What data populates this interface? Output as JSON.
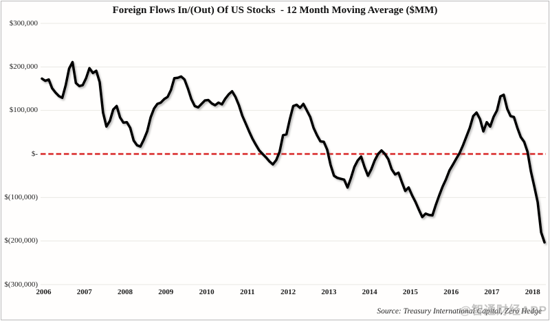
{
  "title": "Foreign Flows In/(Out) Of US Stocks  - 12 Month Moving Average ($MM)",
  "source_note": "Source: Treasury International Capital, Zero Hedge",
  "watermark": "@智通财经APP",
  "chart_data": {
    "type": "line",
    "title": "Foreign Flows In/(Out) Of US Stocks - 12 Month Moving Average ($MM)",
    "series_name": "Foreign flows into US stocks, 12-month moving average ($MM)",
    "frequency": "monthly",
    "x_start": "2006-01",
    "x_end": "2018-05",
    "x_tick_labels": [
      "2006",
      "2007",
      "2008",
      "2009",
      "2010",
      "2011",
      "2012",
      "2013",
      "2014",
      "2015",
      "2016",
      "2017",
      "2018"
    ],
    "y_ticks": [
      {
        "label": "$300,000",
        "value": 300000
      },
      {
        "label": "$200,000",
        "value": 200000
      },
      {
        "label": "$100,000",
        "value": 100000
      },
      {
        "label": "$-",
        "value": 0
      },
      {
        "label": "$(100,000)",
        "value": -100000
      },
      {
        "label": "$(200,000)",
        "value": -200000
      },
      {
        "label": "$(300,000)",
        "value": -300000
      }
    ],
    "ylim": [
      -300000,
      300000
    ],
    "grid": "horizontal",
    "legend": "none",
    "line_color": "#050505",
    "gridline_color": "#eae8e2",
    "zero_line": {
      "style": "dashed",
      "color": "#d82222"
    },
    "values": [
      173000,
      168000,
      171000,
      151000,
      141000,
      133000,
      129000,
      158000,
      196000,
      211000,
      163000,
      156000,
      158000,
      174000,
      197000,
      186000,
      191000,
      165000,
      95000,
      63000,
      76000,
      102000,
      110000,
      84000,
      72000,
      73000,
      60000,
      31000,
      20000,
      17000,
      33000,
      52000,
      84000,
      104000,
      115000,
      118000,
      126000,
      131000,
      147000,
      174000,
      175000,
      178000,
      171000,
      150000,
      126000,
      110000,
      107000,
      115000,
      123000,
      124000,
      116000,
      112000,
      118000,
      114000,
      127000,
      137000,
      144000,
      131000,
      112000,
      88000,
      70000,
      52000,
      35000,
      21000,
      8000,
      0,
      -8000,
      -17000,
      -24000,
      -14000,
      5000,
      43000,
      45000,
      80000,
      110000,
      113000,
      106000,
      115000,
      100000,
      85000,
      60000,
      43000,
      29000,
      28000,
      10000,
      -25000,
      -50000,
      -55000,
      -57000,
      -59000,
      -77000,
      -55000,
      -30000,
      -15000,
      -6000,
      -30000,
      -50000,
      -35000,
      -15000,
      0,
      8000,
      0,
      -12000,
      -35000,
      -47000,
      -43000,
      -65000,
      -85000,
      -77000,
      -95000,
      -110000,
      -128000,
      -145000,
      -137000,
      -140000,
      -141000,
      -117000,
      -95000,
      -75000,
      -58000,
      -38000,
      -25000,
      -11000,
      2000,
      20000,
      40000,
      60000,
      87000,
      95000,
      80000,
      52000,
      73000,
      63000,
      85000,
      100000,
      132000,
      136000,
      104000,
      87000,
      85000,
      60000,
      39000,
      28000,
      5000,
      -40000,
      -75000,
      -111000,
      -180000,
      -203000
    ]
  }
}
